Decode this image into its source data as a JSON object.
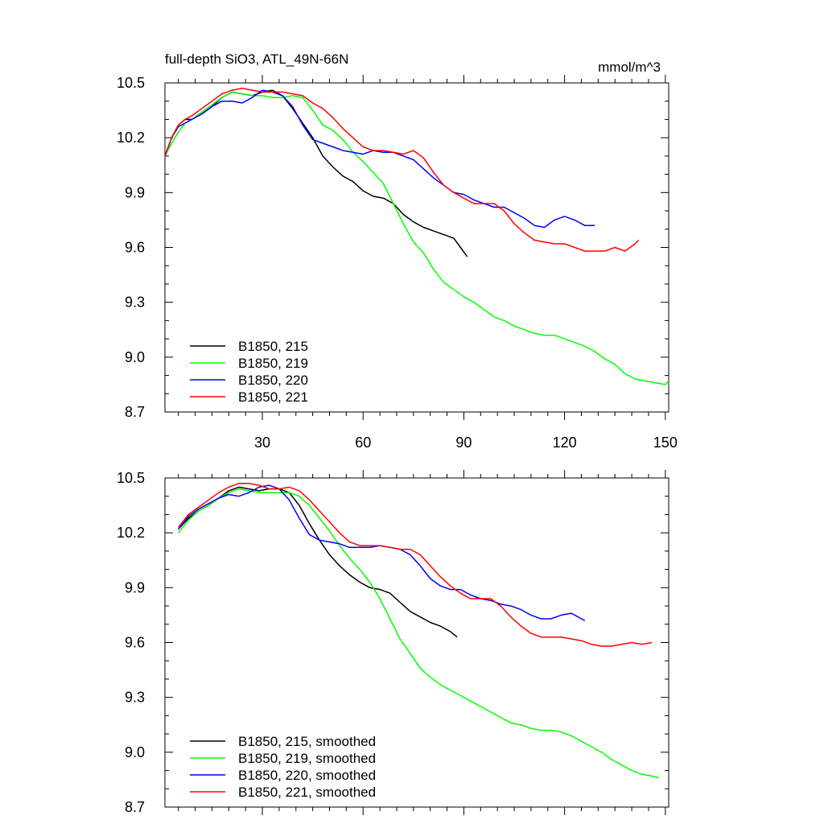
{
  "chart_data": [
    {
      "type": "line",
      "title": "full-depth SiO3, ATL_49N-66N",
      "units": "mmol/m^3",
      "xlim": [
        1,
        151
      ],
      "ylim": [
        8.7,
        10.5
      ],
      "x_ticks": [
        30,
        60,
        90,
        120,
        150
      ],
      "y_ticks": [
        8.7,
        9.0,
        9.3,
        9.6,
        9.9,
        10.2,
        10.5
      ],
      "grid": false,
      "legend_position": "bottom-left",
      "series": [
        {
          "name": "B1850, 215",
          "color": "#000000",
          "x": [
            1,
            3,
            5,
            7,
            9,
            12,
            15,
            18,
            21,
            24,
            27,
            30,
            33,
            36,
            39,
            42,
            45,
            48,
            51,
            54,
            57,
            60,
            63,
            66,
            69,
            72,
            75,
            78,
            81,
            84,
            87,
            89,
            91
          ],
          "y": [
            10.1,
            10.2,
            10.27,
            10.3,
            10.3,
            10.33,
            10.37,
            10.42,
            10.45,
            10.44,
            10.43,
            10.45,
            10.46,
            10.43,
            10.36,
            10.28,
            10.2,
            10.1,
            10.04,
            9.99,
            9.96,
            9.91,
            9.88,
            9.87,
            9.84,
            9.78,
            9.74,
            9.71,
            9.69,
            9.67,
            9.65,
            9.6,
            9.55
          ]
        },
        {
          "name": "B1850, 219",
          "color": "#00ff00",
          "x": [
            1,
            3,
            5,
            7,
            9,
            12,
            15,
            18,
            21,
            24,
            27,
            30,
            33,
            36,
            39,
            42,
            45,
            48,
            51,
            54,
            57,
            60,
            63,
            66,
            69,
            72,
            75,
            78,
            81,
            84,
            87,
            90,
            93,
            96,
            99,
            102,
            105,
            108,
            111,
            114,
            117,
            120,
            123,
            126,
            129,
            132,
            135,
            138,
            141,
            144,
            147,
            150,
            151
          ],
          "y": [
            10.1,
            10.17,
            10.23,
            10.28,
            10.3,
            10.34,
            10.38,
            10.42,
            10.45,
            10.44,
            10.43,
            10.43,
            10.42,
            10.42,
            10.43,
            10.42,
            10.35,
            10.27,
            10.24,
            10.19,
            10.12,
            10.07,
            10.01,
            9.95,
            9.84,
            9.73,
            9.63,
            9.57,
            9.48,
            9.41,
            9.37,
            9.33,
            9.3,
            9.26,
            9.22,
            9.2,
            9.17,
            9.15,
            9.13,
            9.12,
            9.12,
            9.1,
            9.08,
            9.06,
            9.03,
            8.99,
            8.96,
            8.91,
            8.88,
            8.87,
            8.86,
            8.85,
            8.87
          ]
        },
        {
          "name": "B1850, 220",
          "color": "#0000ff",
          "x": [
            1,
            3,
            5,
            7,
            9,
            12,
            15,
            18,
            21,
            24,
            27,
            30,
            33,
            36,
            39,
            42,
            45,
            48,
            51,
            54,
            57,
            60,
            63,
            66,
            69,
            72,
            75,
            78,
            81,
            84,
            87,
            90,
            93,
            96,
            99,
            102,
            105,
            108,
            111,
            114,
            117,
            120,
            123,
            126,
            129
          ],
          "y": [
            10.1,
            10.2,
            10.26,
            10.28,
            10.3,
            10.33,
            10.37,
            10.4,
            10.4,
            10.39,
            10.42,
            10.46,
            10.45,
            10.43,
            10.37,
            10.27,
            10.19,
            10.17,
            10.15,
            10.13,
            10.12,
            10.11,
            10.13,
            10.12,
            10.12,
            10.1,
            10.08,
            10.03,
            9.98,
            9.94,
            9.9,
            9.89,
            9.86,
            9.84,
            9.82,
            9.82,
            9.79,
            9.76,
            9.72,
            9.71,
            9.75,
            9.77,
            9.75,
            9.72,
            9.72
          ]
        },
        {
          "name": "B1850, 221",
          "color": "#ff0000",
          "x": [
            1,
            3,
            5,
            7,
            9,
            12,
            15,
            18,
            21,
            24,
            27,
            30,
            33,
            36,
            39,
            42,
            45,
            48,
            51,
            54,
            57,
            60,
            63,
            66,
            69,
            72,
            75,
            78,
            81,
            84,
            87,
            90,
            93,
            96,
            99,
            102,
            105,
            108,
            111,
            114,
            117,
            120,
            123,
            126,
            129,
            132,
            135,
            138,
            141,
            142
          ],
          "y": [
            10.1,
            10.2,
            10.27,
            10.3,
            10.32,
            10.36,
            10.4,
            10.44,
            10.46,
            10.47,
            10.46,
            10.45,
            10.45,
            10.45,
            10.44,
            10.43,
            10.39,
            10.36,
            10.31,
            10.25,
            10.2,
            10.15,
            10.13,
            10.13,
            10.12,
            10.11,
            10.13,
            10.09,
            10.01,
            9.94,
            9.9,
            9.87,
            9.84,
            9.84,
            9.84,
            9.8,
            9.73,
            9.68,
            9.64,
            9.63,
            9.62,
            9.62,
            9.6,
            9.58,
            9.58,
            9.58,
            9.6,
            9.58,
            9.62,
            9.64
          ]
        }
      ]
    },
    {
      "type": "line",
      "xlim": [
        1,
        151
      ],
      "ylim": [
        8.7,
        10.5
      ],
      "x_ticks": [
        30,
        60,
        90,
        120,
        150
      ],
      "y_ticks": [
        8.7,
        9.0,
        9.3,
        9.6,
        9.9,
        10.2,
        10.5
      ],
      "show_x_tick_labels": false,
      "grid": false,
      "legend_position": "bottom-left",
      "series": [
        {
          "name": "B1850, 215, smoothed",
          "color": "#000000",
          "x": [
            5,
            8,
            11,
            14,
            17,
            20,
            23,
            26,
            29,
            32,
            35,
            38,
            41,
            44,
            47,
            50,
            53,
            56,
            59,
            62,
            65,
            68,
            71,
            74,
            77,
            80,
            83,
            86,
            88
          ],
          "y": [
            10.22,
            10.28,
            10.32,
            10.35,
            10.39,
            10.43,
            10.45,
            10.44,
            10.43,
            10.44,
            10.44,
            10.42,
            10.35,
            10.25,
            10.16,
            10.08,
            10.02,
            9.97,
            9.93,
            9.9,
            9.89,
            9.87,
            9.82,
            9.77,
            9.74,
            9.71,
            9.69,
            9.66,
            9.63
          ]
        },
        {
          "name": "B1850, 219",
          "color": "#00ff00",
          "display_name": "B1850, 219, smoothed",
          "x": [
            5,
            8,
            11,
            14,
            17,
            20,
            23,
            26,
            29,
            32,
            35,
            38,
            41,
            44,
            47,
            50,
            53,
            56,
            59,
            62,
            65,
            68,
            71,
            74,
            77,
            80,
            83,
            86,
            89,
            92,
            95,
            98,
            101,
            104,
            107,
            110,
            113,
            116,
            119,
            122,
            125,
            128,
            131,
            134,
            137,
            140,
            143,
            146,
            148
          ],
          "y": [
            10.2,
            10.27,
            10.32,
            10.35,
            10.39,
            10.42,
            10.44,
            10.43,
            10.42,
            10.42,
            10.42,
            10.42,
            10.4,
            10.35,
            10.28,
            10.21,
            10.13,
            10.06,
            10.0,
            9.93,
            9.84,
            9.73,
            9.62,
            9.54,
            9.46,
            9.41,
            9.37,
            9.34,
            9.31,
            9.28,
            9.25,
            9.22,
            9.19,
            9.16,
            9.15,
            9.13,
            9.12,
            9.12,
            9.11,
            9.09,
            9.06,
            9.03,
            9.0,
            8.96,
            8.93,
            8.9,
            8.88,
            8.87,
            8.86
          ]
        },
        {
          "name": "B1850, 220, smoothed",
          "color": "#0000ff",
          "x": [
            5,
            8,
            11,
            14,
            17,
            20,
            23,
            26,
            29,
            32,
            35,
            38,
            41,
            44,
            47,
            50,
            53,
            56,
            59,
            62,
            65,
            68,
            71,
            74,
            77,
            80,
            83,
            86,
            89,
            92,
            95,
            98,
            101,
            104,
            107,
            110,
            113,
            116,
            119,
            122,
            125,
            126
          ],
          "y": [
            10.22,
            10.29,
            10.33,
            10.36,
            10.39,
            10.41,
            10.4,
            10.42,
            10.45,
            10.46,
            10.44,
            10.38,
            10.28,
            10.19,
            10.16,
            10.15,
            10.14,
            10.12,
            10.12,
            10.12,
            10.13,
            10.12,
            10.11,
            10.08,
            10.02,
            9.95,
            9.91,
            9.89,
            9.89,
            9.86,
            9.84,
            9.83,
            9.81,
            9.8,
            9.78,
            9.75,
            9.73,
            9.73,
            9.75,
            9.76,
            9.73,
            9.72
          ]
        },
        {
          "name": "B1850, 221, smoothed",
          "color": "#ff0000",
          "x": [
            5,
            8,
            11,
            14,
            17,
            20,
            23,
            26,
            29,
            32,
            35,
            38,
            41,
            44,
            47,
            50,
            53,
            56,
            59,
            62,
            65,
            68,
            71,
            74,
            77,
            80,
            83,
            86,
            89,
            92,
            95,
            98,
            101,
            104,
            107,
            110,
            113,
            116,
            119,
            122,
            125,
            128,
            131,
            134,
            137,
            140,
            143,
            146
          ],
          "y": [
            10.23,
            10.3,
            10.34,
            10.38,
            10.42,
            10.45,
            10.47,
            10.47,
            10.46,
            10.44,
            10.44,
            10.45,
            10.43,
            10.38,
            10.32,
            10.26,
            10.2,
            10.15,
            10.13,
            10.13,
            10.13,
            10.12,
            10.11,
            10.11,
            10.08,
            10.02,
            9.96,
            9.91,
            9.87,
            9.84,
            9.84,
            9.84,
            9.8,
            9.74,
            9.69,
            9.65,
            9.63,
            9.63,
            9.63,
            9.62,
            9.61,
            9.59,
            9.58,
            9.58,
            9.59,
            9.6,
            9.59,
            9.6
          ]
        }
      ]
    }
  ]
}
